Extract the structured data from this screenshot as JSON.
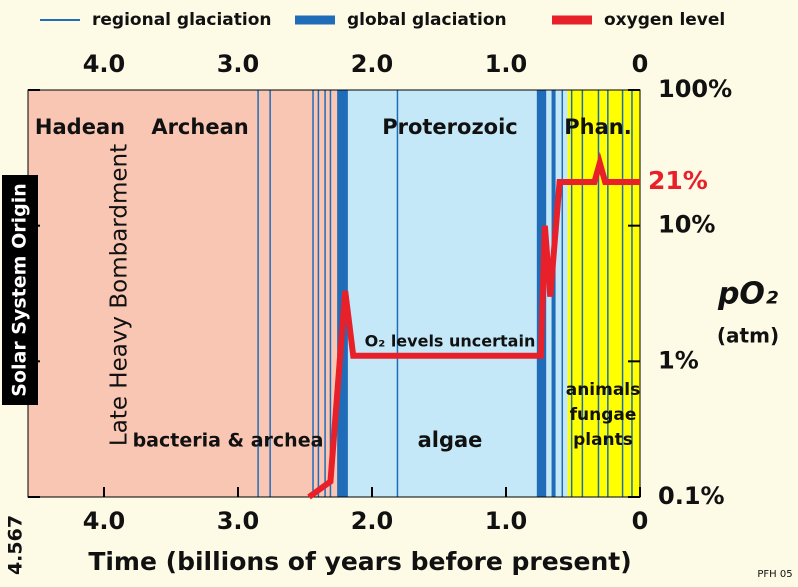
{
  "chart_data": {
    "type": "line",
    "log_y": true,
    "xlim": [
      4.567,
      0
    ],
    "ylim": [
      0.1,
      100
    ],
    "xticks": [
      {
        "value": 4,
        "label": "4.0"
      },
      {
        "value": 3,
        "label": "3.0"
      },
      {
        "value": 2,
        "label": "2.0"
      },
      {
        "value": 1,
        "label": "1.0"
      },
      0
    ],
    "origin_tick": {
      "value": 4.567,
      "label": "4.567"
    },
    "yticks": [
      {
        "value": 100,
        "label": "100%"
      },
      {
        "value": 10,
        "label": "10%"
      },
      {
        "value": 1,
        "label": "1%"
      },
      {
        "value": 0.1,
        "label": "0.1%"
      }
    ],
    "x_label": "Time (billions of years before present)",
    "y_label": "pO₂",
    "y_unit": "(atm)",
    "regions": [
      {
        "start": 4.567,
        "end": 2.25,
        "color": "#f9c6b3"
      },
      {
        "start": 2.25,
        "end": 0.54,
        "color": "#c5e8f8"
      },
      {
        "start": 0.54,
        "end": 0,
        "color": "#ffff00"
      }
    ],
    "eons": [
      "Hadean",
      "Archean",
      "Proterozoic",
      "Phan."
    ],
    "life": [
      "bacteria & archea",
      "algae",
      "animals",
      "fungae",
      "plants"
    ],
    "bombardment": "Late Heavy Bombardment",
    "origin": "Solar System Origin",
    "uncertain": "O₂ levels uncertain",
    "credit": "PFH 05",
    "regional": {
      "name": "regional glaciation",
      "color": "#1f6db8",
      "times": [
        2.85,
        2.76,
        2.44,
        2.4,
        2.35,
        2.31,
        1.81,
        0.58,
        0.51,
        0.43,
        0.31,
        0.24,
        0.13,
        0.06
      ]
    },
    "global": {
      "name": "global glaciation",
      "color": "#1f6db8",
      "ranges": [
        [
          2.26,
          2.18
        ],
        [
          0.77,
          0.7
        ],
        [
          0.66,
          0.63
        ]
      ]
    },
    "series": [
      {
        "name": "oxygen level",
        "color": "#e8202a",
        "x": [
          2.47,
          2.31,
          2.2,
          2.14,
          0.74,
          0.71,
          0.67,
          0.6,
          0.34,
          0.3,
          0.26,
          0
        ],
        "values": [
          0.1,
          0.13,
          3.3,
          1.1,
          1.1,
          10,
          3,
          21,
          21,
          29,
          21,
          21
        ]
      }
    ],
    "current_level": {
      "value": 21,
      "label": "21%"
    }
  }
}
